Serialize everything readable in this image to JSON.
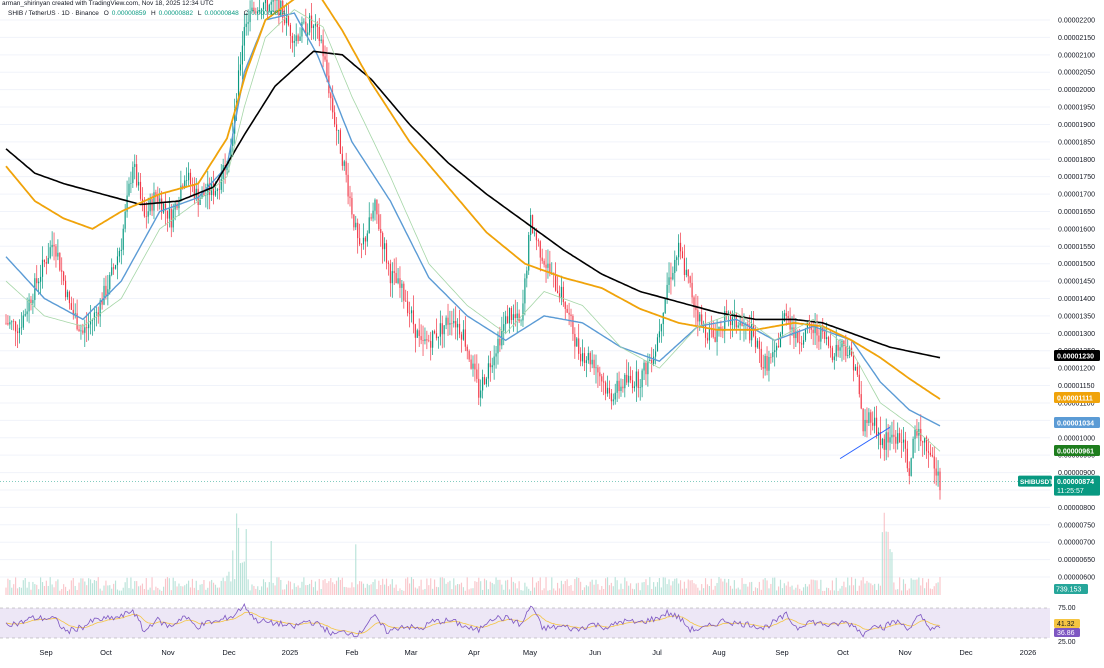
{
  "header": {
    "creator": "arman_shirinyan created with TradingView.com, Nov 18, 2025 12:34 UTC",
    "symbol": "SHIB / TetherUS · 1D · Binance",
    "ohlc": {
      "o_label": "O",
      "o": "0.00000859",
      "h_label": "H",
      "h": "0.00000882",
      "l_label": "L",
      "l": "0.00000848",
      "c_label": "C",
      "c": "0.00000874"
    }
  },
  "colors": {
    "up": "#089981",
    "down": "#f23645",
    "ma_fast": "#a5d6a7",
    "ma_blue": "#5b9bd5",
    "ma_orange": "#f0a30a",
    "ma_black": "#000000",
    "rsi": "#7e57c2",
    "rsi_ma": "#f5c542",
    "rsi_band": "#ede7f6",
    "trendline": "#2962ff"
  },
  "chart_data": {
    "type": "candlestick",
    "price_axis": {
      "min": 5.6e-06,
      "max": 2.2e-06,
      "ticks": [
        "0.00002200",
        "0.00002150",
        "0.00002100",
        "0.00002050",
        "0.00002000",
        "0.00001950",
        "0.00001900",
        "0.00001850",
        "0.00001800",
        "0.00001750",
        "0.00001700",
        "0.00001650",
        "0.00001600",
        "0.00001550",
        "0.00001500",
        "0.00001450",
        "0.00001400",
        "0.00001350",
        "0.00001300",
        "0.00001250",
        "0.00001200",
        "0.00001150",
        "0.00001100",
        "0.00001050",
        "0.00001000",
        "0.00000950",
        "0.00000900",
        "0.00000850",
        "0.00000800",
        "0.00000750",
        "0.00000700",
        "0.00000650",
        "0.00000600"
      ]
    },
    "x_axis_labels": [
      "Sep",
      "Oct",
      "Nov",
      "Dec",
      "2025",
      "Feb",
      "Mar",
      "Apr",
      "May",
      "Jun",
      "Jul",
      "Aug",
      "Sep",
      "Oct",
      "Nov",
      "Dec",
      "2026"
    ],
    "price_anchors": [
      [
        0,
        13.3
      ],
      [
        7,
        13.2
      ],
      [
        14,
        14.2
      ],
      [
        25,
        15.7
      ],
      [
        33,
        13.8
      ],
      [
        40,
        13.0
      ],
      [
        47,
        13.6
      ],
      [
        54,
        14.5
      ],
      [
        60,
        15.6
      ],
      [
        66,
        17.9
      ],
      [
        72,
        16.3
      ],
      [
        78,
        17.0
      ],
      [
        86,
        16.3
      ],
      [
        93,
        17.6
      ],
      [
        100,
        16.9
      ],
      [
        110,
        17.2
      ],
      [
        118,
        18.7
      ],
      [
        124,
        21.9
      ],
      [
        132,
        22.5
      ],
      [
        142,
        22.4
      ],
      [
        150,
        21.5
      ],
      [
        158,
        21.9
      ],
      [
        164,
        21.4
      ],
      [
        170,
        19.4
      ],
      [
        176,
        17.8
      ],
      [
        184,
        15.3
      ],
      [
        192,
        16.6
      ],
      [
        200,
        14.7
      ],
      [
        208,
        14.0
      ],
      [
        216,
        12.6
      ],
      [
        224,
        13.0
      ],
      [
        232,
        13.5
      ],
      [
        238,
        13.0
      ],
      [
        246,
        11.3
      ],
      [
        254,
        12.5
      ],
      [
        262,
        13.6
      ],
      [
        268,
        13.2
      ],
      [
        273,
        16.2
      ],
      [
        278,
        15.4
      ],
      [
        284,
        14.6
      ],
      [
        290,
        14.0
      ],
      [
        298,
        12.5
      ],
      [
        306,
        12.2
      ],
      [
        314,
        11.2
      ],
      [
        322,
        11.6
      ],
      [
        330,
        11.7
      ],
      [
        338,
        12.6
      ],
      [
        344,
        14.4
      ],
      [
        350,
        15.4
      ],
      [
        356,
        14.3
      ],
      [
        362,
        13.2
      ],
      [
        368,
        12.9
      ],
      [
        374,
        13.4
      ],
      [
        380,
        13.3
      ],
      [
        388,
        13.0
      ],
      [
        394,
        12.1
      ],
      [
        400,
        12.3
      ],
      [
        406,
        13.7
      ],
      [
        411,
        12.8
      ],
      [
        418,
        13.1
      ],
      [
        424,
        13.0
      ],
      [
        430,
        12.5
      ],
      [
        436,
        12.7
      ],
      [
        442,
        12.1
      ],
      [
        446,
        10.3
      ],
      [
        450,
        10.7
      ],
      [
        456,
        9.8
      ],
      [
        462,
        10.1
      ],
      [
        466,
        9.9
      ],
      [
        470,
        9.1
      ],
      [
        474,
        10.3
      ],
      [
        478,
        10.0
      ],
      [
        482,
        9.3
      ],
      [
        484,
        9.0
      ],
      [
        486,
        8.74
      ]
    ],
    "series": [
      {
        "name": "",
        "values": [
          [
            0,
            15.2
          ],
          [
            20,
            14.0
          ],
          [
            40,
            13.4
          ],
          [
            60,
            14.5
          ],
          [
            80,
            16.5
          ],
          [
            100,
            16.9
          ],
          [
            115,
            17.8
          ],
          [
            124,
            20.5
          ],
          [
            135,
            22.0
          ],
          [
            150,
            22.2
          ],
          [
            162,
            21.0
          ],
          [
            180,
            18.5
          ],
          [
            200,
            16.8
          ],
          [
            220,
            14.6
          ],
          [
            240,
            13.5
          ],
          [
            260,
            12.8
          ],
          [
            280,
            13.5
          ],
          [
            300,
            13.3
          ],
          [
            320,
            12.6
          ],
          [
            340,
            12.2
          ],
          [
            360,
            13.2
          ],
          [
            380,
            13.4
          ],
          [
            400,
            12.8
          ],
          [
            420,
            13.2
          ],
          [
            440,
            12.8
          ],
          [
            455,
            11.6
          ],
          [
            470,
            10.8
          ],
          [
            486,
            10.34
          ]
        ]
      },
      {
        "name": "",
        "values": [
          [
            0,
            18.3
          ],
          [
            15,
            17.6
          ],
          [
            30,
            17.3
          ],
          [
            50,
            17.0
          ],
          [
            70,
            16.7
          ],
          [
            90,
            16.8
          ],
          [
            108,
            17.2
          ],
          [
            124,
            18.7
          ],
          [
            140,
            20.1
          ],
          [
            160,
            21.1
          ],
          [
            175,
            21.0
          ],
          [
            190,
            20.3
          ],
          [
            210,
            19.0
          ],
          [
            230,
            17.9
          ],
          [
            250,
            17.0
          ],
          [
            270,
            16.2
          ],
          [
            290,
            15.4
          ],
          [
            310,
            14.7
          ],
          [
            330,
            14.2
          ],
          [
            350,
            13.9
          ],
          [
            370,
            13.6
          ],
          [
            390,
            13.4
          ],
          [
            410,
            13.4
          ],
          [
            425,
            13.3
          ],
          [
            440,
            13.0
          ],
          [
            460,
            12.6
          ],
          [
            486,
            12.3
          ]
        ]
      },
      {
        "name": "",
        "values": [
          [
            0,
            17.8
          ],
          [
            15,
            16.8
          ],
          [
            30,
            16.3
          ],
          [
            45,
            16.0
          ],
          [
            60,
            16.5
          ],
          [
            80,
            17.0
          ],
          [
            100,
            17.3
          ],
          [
            115,
            18.6
          ],
          [
            125,
            20.5
          ],
          [
            135,
            22.0
          ],
          [
            150,
            22.6
          ],
          [
            162,
            22.8
          ],
          [
            175,
            21.7
          ],
          [
            190,
            20.2
          ],
          [
            210,
            18.5
          ],
          [
            230,
            17.2
          ],
          [
            250,
            15.9
          ],
          [
            270,
            15.0
          ],
          [
            290,
            14.6
          ],
          [
            310,
            14.3
          ],
          [
            330,
            13.7
          ],
          [
            350,
            13.3
          ],
          [
            370,
            13.1
          ],
          [
            390,
            13.1
          ],
          [
            410,
            13.3
          ],
          [
            425,
            13.2
          ],
          [
            440,
            12.8
          ],
          [
            455,
            12.3
          ],
          [
            470,
            11.7
          ],
          [
            486,
            11.11
          ]
        ]
      },
      {
        "name": "",
        "values": [
          [
            0,
            14.5
          ],
          [
            20,
            13.5
          ],
          [
            40,
            13.2
          ],
          [
            60,
            14.0
          ],
          [
            80,
            16.0
          ],
          [
            100,
            16.8
          ],
          [
            115,
            17.5
          ],
          [
            124,
            19.5
          ],
          [
            135,
            21.5
          ],
          [
            150,
            22.3
          ],
          [
            165,
            21.8
          ],
          [
            180,
            19.8
          ],
          [
            200,
            17.5
          ],
          [
            220,
            15.0
          ],
          [
            240,
            13.8
          ],
          [
            260,
            13.0
          ],
          [
            280,
            14.2
          ],
          [
            300,
            13.8
          ],
          [
            320,
            12.6
          ],
          [
            340,
            12.0
          ],
          [
            360,
            13.2
          ],
          [
            380,
            13.6
          ],
          [
            400,
            12.8
          ],
          [
            420,
            13.4
          ],
          [
            440,
            12.5
          ],
          [
            455,
            11.0
          ],
          [
            470,
            10.4
          ],
          [
            486,
            9.61
          ]
        ]
      }
    ],
    "trendline": [
      [
        434,
        9.4
      ],
      [
        460,
        10.3
      ]
    ],
    "badges": [
      {
        "label": "0.00001230",
        "color": "#000000"
      },
      {
        "label": "0.00001111",
        "color": "#f0a30a"
      },
      {
        "label": "0.00001034",
        "color": "#5b9bd5"
      },
      {
        "label": "0.00000961",
        "color": "#1e7d1e"
      },
      {
        "label": "SHIBUSDT",
        "value": "0.00000874",
        "time": "11:25:57",
        "color": "#089981"
      },
      {
        "label": "739.153",
        "color": "#26a69a"
      }
    ],
    "rsi_axis": {
      "ticks": [
        "75.00",
        "25.00"
      ]
    },
    "rsi_badges": [
      {
        "label": "41.32",
        "color": "#f5c542"
      },
      {
        "label": "36.86",
        "color": "#7e57c2"
      }
    ]
  }
}
